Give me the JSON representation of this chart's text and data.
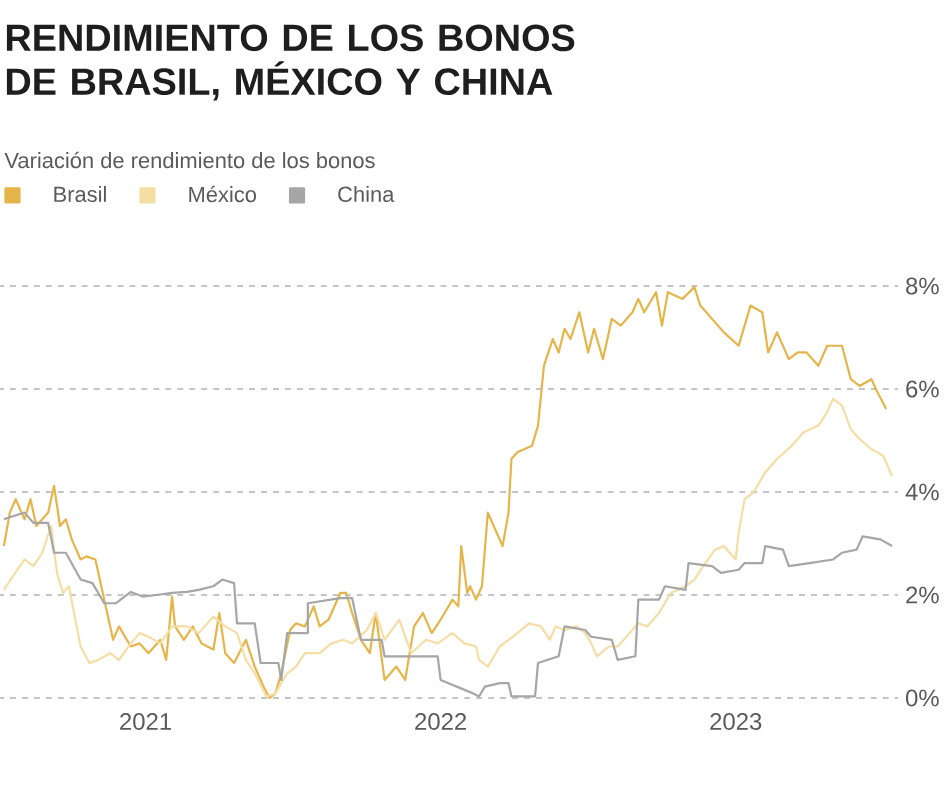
{
  "chart_data": {
    "type": "line",
    "title": "RENDIMIENTO DE LOS BONOS DE BRASIL, MÉXICO Y CHINA",
    "subtitle": "Variación de rendimiento de los bonos",
    "xlim": [
      2021.0,
      2024.05
    ],
    "xticks": [
      {
        "value": 2021.5,
        "label": "2021"
      },
      {
        "value": 2022.5,
        "label": "2022"
      },
      {
        "value": 2023.5,
        "label": "2023"
      }
    ],
    "ylim": [
      0,
      8
    ],
    "yticks": [
      {
        "value": 0,
        "label": "0%"
      },
      {
        "value": 2,
        "label": "2%"
      },
      {
        "value": 4,
        "label": "4%"
      },
      {
        "value": 6,
        "label": "6%"
      },
      {
        "value": 8,
        "label": "8%"
      }
    ],
    "grid": "y",
    "legend": "top left",
    "line_style": "solid",
    "marker": "none",
    "series": [
      {
        "name": "Brasil",
        "color": "#e6b54a",
        "x": [
          2021.02,
          2021.04,
          2021.06,
          2021.09,
          2021.11,
          2021.13,
          2021.17,
          2021.19,
          2021.21,
          2021.23,
          2021.25,
          2021.28,
          2021.3,
          2021.33,
          2021.36,
          2021.39,
          2021.41,
          2021.45,
          2021.48,
          2021.51,
          2021.55,
          2021.57,
          2021.59,
          2021.6,
          2021.63,
          2021.66,
          2021.69,
          2021.73,
          2021.75,
          2021.77,
          2021.8,
          2021.84,
          2021.87,
          2021.9,
          2021.92,
          2021.94,
          2021.96,
          2021.99,
          2022.01,
          2022.04,
          2022.07,
          2022.09,
          2022.12,
          2022.16,
          2022.18,
          2022.2,
          2022.23,
          2022.26,
          2022.28,
          2022.31,
          2022.35,
          2022.38,
          2022.41,
          2022.44,
          2022.47,
          2022.5,
          2022.54,
          2022.56,
          2022.57,
          2022.59,
          2022.6,
          2022.62,
          2022.64,
          2022.66,
          2022.69,
          2022.71,
          2022.73,
          2022.74,
          2022.76,
          2022.81,
          2022.83,
          2022.85,
          2022.88,
          2022.9,
          2022.92,
          2022.94,
          2022.97,
          2023.0,
          2023.02,
          2023.05,
          2023.08,
          2023.11,
          2023.15,
          2023.17,
          2023.19,
          2023.23,
          2023.25,
          2023.27,
          2023.32,
          2023.36,
          2023.38,
          2023.42,
          2023.46,
          2023.51,
          2023.55,
          2023.59,
          2023.61,
          2023.64,
          2023.68,
          2023.71,
          2023.74,
          2023.78,
          2023.81,
          2023.86,
          2023.89,
          2023.92,
          2023.96,
          2023.98,
          2024.01
        ],
        "values": [
          2.95,
          3.6,
          3.86,
          3.47,
          3.86,
          3.34,
          3.6,
          4.12,
          3.34,
          3.47,
          3.08,
          2.69,
          2.75,
          2.69,
          1.91,
          1.13,
          1.39,
          1.0,
          1.06,
          0.87,
          1.13,
          0.74,
          1.97,
          1.39,
          1.13,
          1.39,
          1.06,
          0.94,
          1.65,
          0.87,
          0.68,
          1.13,
          0.61,
          0.22,
          0.0,
          0.09,
          0.48,
          1.32,
          1.45,
          1.39,
          1.78,
          1.39,
          1.52,
          2.04,
          2.04,
          1.65,
          1.13,
          0.87,
          1.65,
          0.35,
          0.61,
          0.35,
          1.39,
          1.65,
          1.26,
          1.52,
          1.91,
          1.78,
          2.95,
          2.04,
          2.17,
          1.91,
          2.17,
          3.6,
          3.21,
          2.95,
          3.6,
          4.64,
          4.77,
          4.9,
          5.29,
          6.45,
          6.97,
          6.71,
          7.17,
          6.97,
          7.49,
          6.71,
          7.17,
          6.58,
          7.36,
          7.23,
          7.49,
          7.75,
          7.49,
          7.88,
          7.23,
          7.88,
          7.75,
          7.98,
          7.62,
          7.36,
          7.1,
          6.84,
          7.62,
          7.49,
          6.71,
          7.1,
          6.58,
          6.71,
          6.71,
          6.45,
          6.84,
          6.84,
          6.19,
          6.06,
          6.19,
          5.94,
          5.61
        ]
      },
      {
        "name": "México",
        "color": "#f5dea4",
        "x": [
          2021.02,
          2021.05,
          2021.09,
          2021.12,
          2021.15,
          2021.18,
          2021.2,
          2021.22,
          2021.24,
          2021.28,
          2021.31,
          2021.34,
          2021.38,
          2021.41,
          2021.45,
          2021.48,
          2021.51,
          2021.55,
          2021.59,
          2021.64,
          2021.68,
          2021.73,
          2021.77,
          2021.81,
          2021.84,
          2021.87,
          2021.91,
          2021.94,
          2021.98,
          2022.01,
          2022.04,
          2022.09,
          2022.13,
          2022.17,
          2022.2,
          2022.25,
          2022.28,
          2022.31,
          2022.36,
          2022.4,
          2022.45,
          2022.49,
          2022.54,
          2022.58,
          2022.62,
          2022.63,
          2022.66,
          2022.7,
          2022.73,
          2022.76,
          2022.8,
          2022.84,
          2022.87,
          2022.89,
          2022.92,
          2022.96,
          2022.99,
          2023.01,
          2023.03,
          2023.07,
          2023.1,
          2023.14,
          2023.17,
          2023.2,
          2023.24,
          2023.28,
          2023.33,
          2023.36,
          2023.39,
          2023.43,
          2023.46,
          2023.5,
          2023.51,
          2023.53,
          2023.56,
          2023.6,
          2023.64,
          2023.69,
          2023.73,
          2023.78,
          2023.81,
          2023.83,
          2023.86,
          2023.89,
          2023.92,
          2023.96,
          2023.98,
          2024.0,
          2024.03
        ],
        "values": [
          2.1,
          2.36,
          2.69,
          2.56,
          2.82,
          3.34,
          2.43,
          2.04,
          2.17,
          1.0,
          0.68,
          0.74,
          0.87,
          0.74,
          1.06,
          1.26,
          1.19,
          1.06,
          1.39,
          1.39,
          1.26,
          1.58,
          1.39,
          1.26,
          0.74,
          0.48,
          0.03,
          0.09,
          0.48,
          0.61,
          0.87,
          0.87,
          1.06,
          1.13,
          1.06,
          1.32,
          1.65,
          1.13,
          1.52,
          0.87,
          1.13,
          1.06,
          1.26,
          1.06,
          1.0,
          0.74,
          0.61,
          1.0,
          1.13,
          1.26,
          1.45,
          1.39,
          1.13,
          1.39,
          1.32,
          1.39,
          1.26,
          1.06,
          0.81,
          1.0,
          1.0,
          1.26,
          1.45,
          1.39,
          1.65,
          2.04,
          2.17,
          2.3,
          2.56,
          2.88,
          2.95,
          2.69,
          3.21,
          3.86,
          3.99,
          4.38,
          4.64,
          4.9,
          5.16,
          5.29,
          5.55,
          5.81,
          5.68,
          5.22,
          5.03,
          4.83,
          4.77,
          4.7,
          4.31
        ]
      },
      {
        "name": "China",
        "color": "#a6a6a6",
        "x": [
          2021.02,
          2021.05,
          2021.09,
          2021.12,
          2021.17,
          2021.19,
          2021.23,
          2021.28,
          2021.32,
          2021.36,
          2021.4,
          2021.45,
          2021.49,
          2021.55,
          2021.59,
          2021.64,
          2021.68,
          2021.73,
          2021.76,
          2021.8,
          2021.81,
          2021.87,
          2021.89,
          2021.95,
          2021.96,
          2021.98,
          2022.05,
          2022.05,
          2022.16,
          2022.2,
          2022.23,
          2022.3,
          2022.31,
          2022.4,
          2022.49,
          2022.5,
          2022.61,
          2022.63,
          2022.65,
          2022.7,
          2022.73,
          2022.74,
          2022.82,
          2022.83,
          2022.9,
          2022.92,
          2022.99,
          2023.01,
          2023.08,
          2023.1,
          2023.16,
          2023.17,
          2023.24,
          2023.26,
          2023.33,
          2023.34,
          2023.42,
          2023.45,
          2023.51,
          2023.53,
          2023.59,
          2023.6,
          2023.66,
          2023.68,
          2023.75,
          2023.83,
          2023.86,
          2023.91,
          2023.93,
          2023.99,
          2024.03
        ],
        "values": [
          3.47,
          3.53,
          3.6,
          3.4,
          3.4,
          2.82,
          2.82,
          2.3,
          2.23,
          1.84,
          1.84,
          2.06,
          1.97,
          2.01,
          2.04,
          2.06,
          2.1,
          2.17,
          2.3,
          2.23,
          1.45,
          1.45,
          0.68,
          0.68,
          0.35,
          1.26,
          1.26,
          1.84,
          1.94,
          1.94,
          1.13,
          1.13,
          0.81,
          0.81,
          0.81,
          0.35,
          0.09,
          0.03,
          0.22,
          0.29,
          0.29,
          0.03,
          0.03,
          0.68,
          0.81,
          1.39,
          1.32,
          1.19,
          1.13,
          0.74,
          0.81,
          1.91,
          1.91,
          2.17,
          2.1,
          2.62,
          2.56,
          2.43,
          2.49,
          2.62,
          2.62,
          2.95,
          2.88,
          2.56,
          2.62,
          2.69,
          2.82,
          2.88,
          3.14,
          3.08,
          2.95
        ]
      }
    ]
  }
}
